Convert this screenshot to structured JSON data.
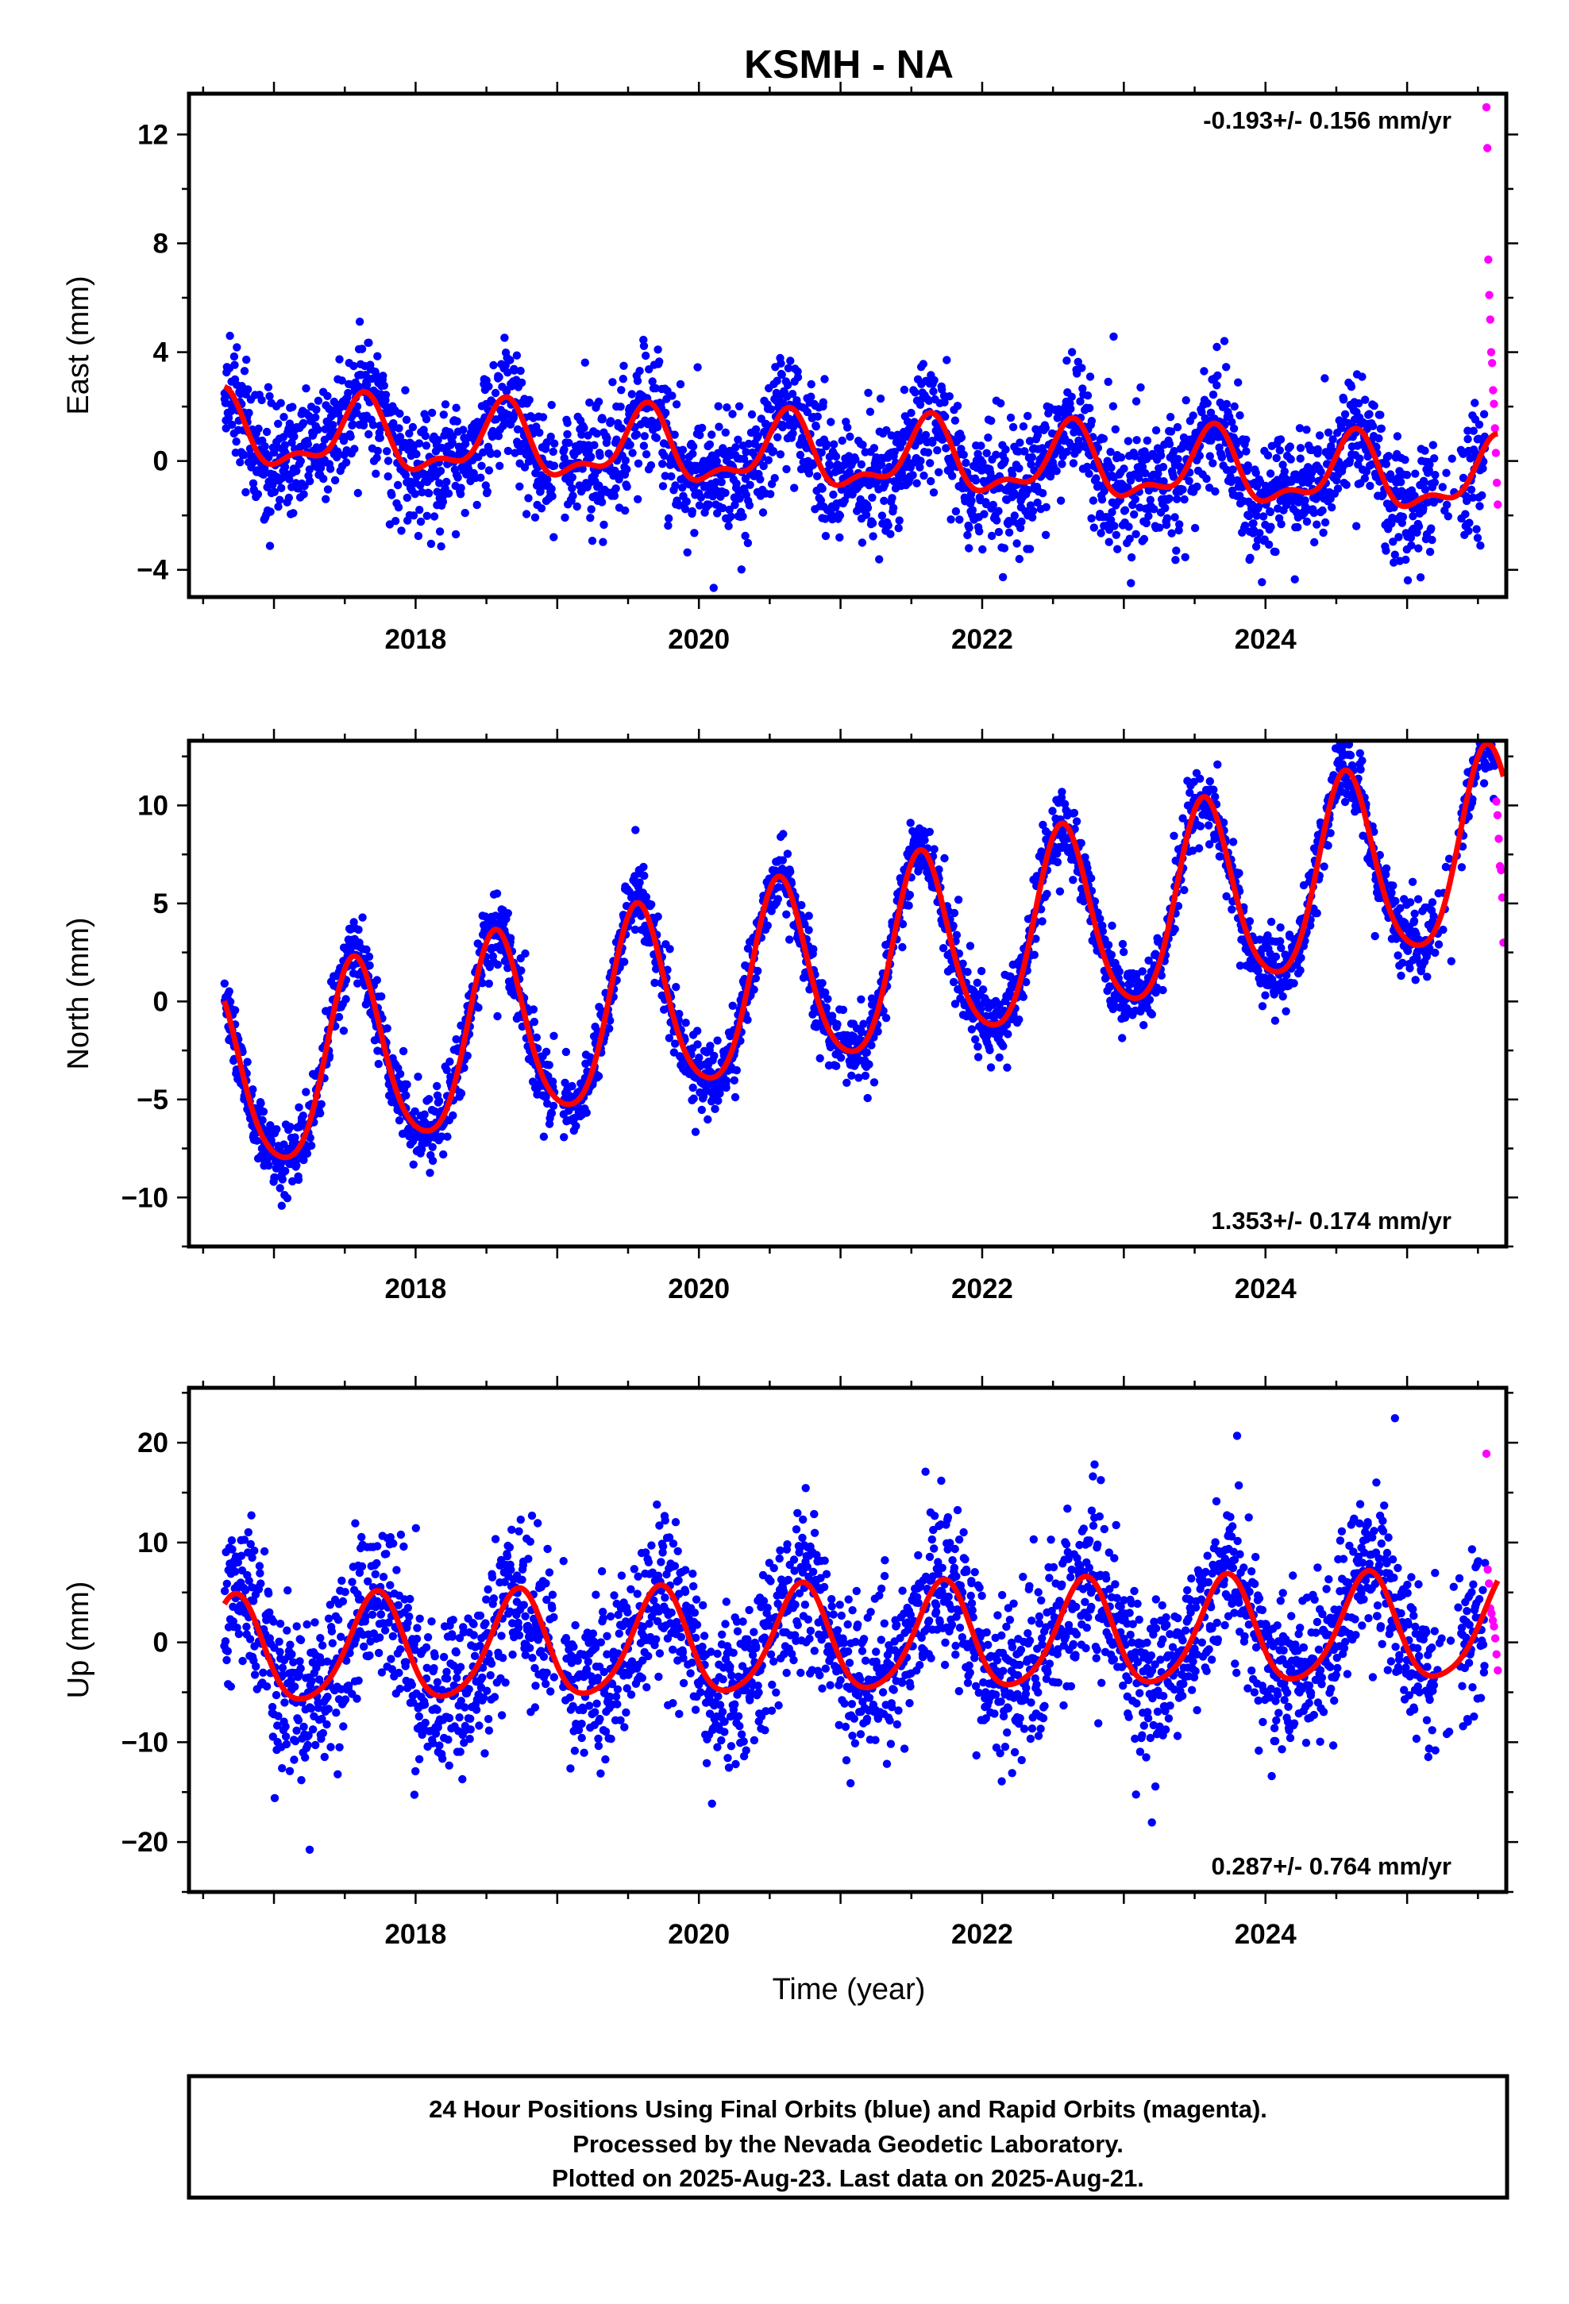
{
  "title": "KSMH - NA",
  "xlabel": "Time (year)",
  "caption": [
    "24 Hour Positions Using Final Orbits (blue) and Rapid Orbits (magenta).",
    "Processed by the Nevada Geodetic Laboratory.",
    "Plotted on 2025-Aug-23. Last data on 2025-Aug-21."
  ],
  "colors": {
    "final_orbits": "#0000ff",
    "rapid_orbits": "#ff00ff",
    "model": "#ff0000",
    "frame": "#000000"
  },
  "chart_data": [
    {
      "type": "scatter",
      "ylabel": "East (mm)",
      "rate_label": "-0.193+/- 0.156 mm/yr",
      "xlim": [
        2016.4,
        2025.7
      ],
      "ylim": [
        -5,
        13.5
      ],
      "xticks": [
        2018,
        2020,
        2022,
        2024
      ],
      "yticks": [
        -4,
        0,
        4,
        8,
        12
      ],
      "data_start": 2016.65,
      "final_end": 2025.55,
      "rapid_start": 2025.56,
      "rapid_end": 2025.64,
      "model": {
        "offset": 1.0,
        "trend": -0.193,
        "annual_amp": 1.2,
        "annual_peak": 2016.62,
        "semiannual_amp": 0.55,
        "semiannual_peak": 2016.65
      },
      "scatter_sd": 1.1,
      "final_orbits": {
        "n_points": 2800
      },
      "rapid_orbits": {
        "values": [
          13.0,
          11.5,
          7.4,
          6.1,
          5.2,
          4.0,
          3.6,
          2.6,
          2.1,
          1.2,
          0.3,
          -0.8,
          -1.6
        ]
      }
    },
    {
      "type": "scatter",
      "ylabel": "North (mm)",
      "rate_label": "1.353+/- 0.174 mm/yr",
      "xlim": [
        2016.4,
        2025.7
      ],
      "ylim": [
        -12.5,
        13.3
      ],
      "xticks": [
        2018,
        2020,
        2022,
        2024
      ],
      "yticks": [
        -10,
        -5,
        0,
        5,
        10
      ],
      "data_start": 2016.65,
      "final_end": 2025.62,
      "rapid_start": 2025.63,
      "rapid_end": 2025.68,
      "model": {
        "offset": -4.4,
        "trend": 1.353,
        "annual_amp": 4.8,
        "annual_peak": 2016.57,
        "semiannual_amp": 0.7,
        "semiannual_peak": 2016.55
      },
      "scatter_sd": 0.9,
      "final_orbits": {
        "n_points": 2900
      },
      "rapid_orbits": {
        "values": [
          10.2,
          9.5,
          8.3,
          6.9,
          6.7,
          5.3,
          3.0
        ]
      }
    },
    {
      "type": "scatter",
      "ylabel": "Up (mm)",
      "rate_label": "0.287+/- 0.764 mm/yr",
      "xlim": [
        2016.4,
        2025.7
      ],
      "ylim": [
        -25,
        25.5
      ],
      "xticks": [
        2018,
        2020,
        2022,
        2024
      ],
      "yticks": [
        -20,
        -10,
        0,
        10,
        20
      ],
      "data_start": 2016.65,
      "final_end": 2025.55,
      "rapid_start": 2025.56,
      "rapid_end": 2025.64,
      "model": {
        "offset": -1.2,
        "trend": 0.287,
        "annual_amp": 5.3,
        "annual_peak": 2016.72,
        "semiannual_amp": 0.8,
        "semiannual_peak": 2016.75
      },
      "scatter_sd": 4.0,
      "final_orbits": {
        "n_points": 2800
      },
      "rapid_orbits": {
        "values": [
          18.9,
          7.3,
          5.9,
          3.4,
          2.9,
          2.2,
          1.6,
          0.4,
          -1.2,
          -2.8
        ]
      }
    }
  ]
}
